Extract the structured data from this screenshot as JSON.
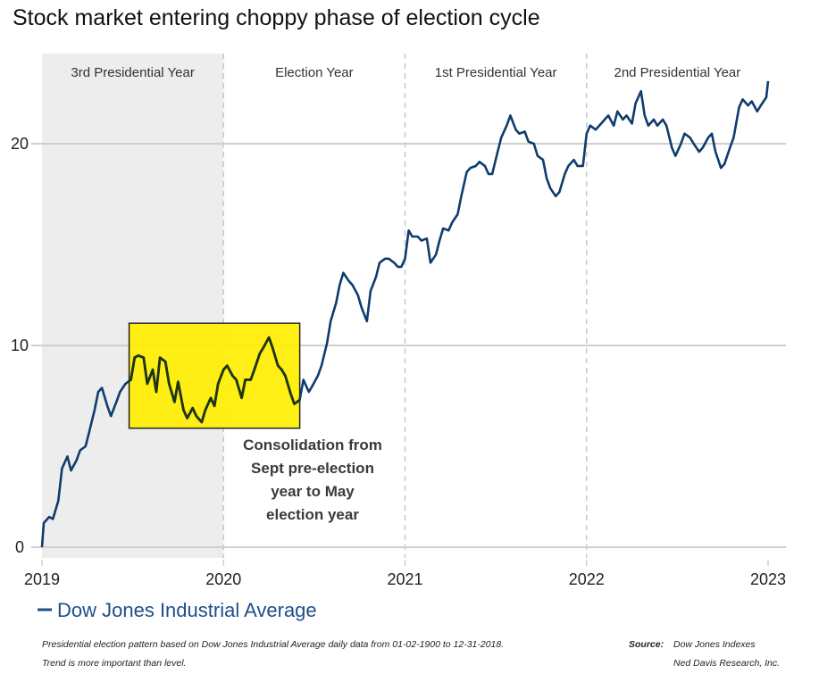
{
  "chart_data": {
    "type": "line",
    "title": "Stock market entering choppy phase of election cycle",
    "xlabel": "",
    "ylabel": "",
    "xlim": [
      2019,
      2023
    ],
    "ylim": [
      0,
      24.5
    ],
    "x_ticks": [
      "2019",
      "2020",
      "2021",
      "2022",
      "2023"
    ],
    "y_ticks": [
      "0",
      "10",
      "20"
    ],
    "grid": "horizontal",
    "legend_position": "bottom-left",
    "line_color": "#0f3c6e",
    "periods": [
      {
        "label": "3rd Presidential Year",
        "start": 2019,
        "end": 2020,
        "shaded": true
      },
      {
        "label": "Election Year",
        "start": 2020,
        "end": 2021,
        "shaded": false
      },
      {
        "label": "1st Presidential Year",
        "start": 2021,
        "end": 2022,
        "shaded": false
      },
      {
        "label": "2nd Presidential Year",
        "start": 2022,
        "end": 2023,
        "shaded": false
      }
    ],
    "highlight": {
      "x": [
        2019.48,
        2020.42
      ],
      "y": [
        5.9,
        11.1
      ],
      "color": "#ffee00",
      "lines": [
        "Consolidation from",
        "Sept pre-election",
        "year to May",
        "election year"
      ]
    },
    "series": [
      {
        "name": "Dow Jones Industrial Average",
        "points": [
          [
            2019.0,
            0
          ],
          [
            2019.01,
            1.2
          ],
          [
            2019.04,
            1.5
          ],
          [
            2019.06,
            1.4
          ],
          [
            2019.09,
            2.3
          ],
          [
            2019.11,
            3.9
          ],
          [
            2019.14,
            4.5
          ],
          [
            2019.16,
            3.8
          ],
          [
            2019.19,
            4.3
          ],
          [
            2019.21,
            4.8
          ],
          [
            2019.24,
            5.0
          ],
          [
            2019.26,
            5.7
          ],
          [
            2019.29,
            6.8
          ],
          [
            2019.31,
            7.7
          ],
          [
            2019.33,
            7.9
          ],
          [
            2019.36,
            7.0
          ],
          [
            2019.38,
            6.5
          ],
          [
            2019.41,
            7.2
          ],
          [
            2019.43,
            7.7
          ],
          [
            2019.46,
            8.1
          ],
          [
            2019.49,
            8.3
          ],
          [
            2019.51,
            9.4
          ],
          [
            2019.53,
            9.5
          ],
          [
            2019.56,
            9.4
          ],
          [
            2019.58,
            8.1
          ],
          [
            2019.61,
            8.8
          ],
          [
            2019.63,
            7.7
          ],
          [
            2019.65,
            9.4
          ],
          [
            2019.68,
            9.2
          ],
          [
            2019.7,
            8.1
          ],
          [
            2019.73,
            7.2
          ],
          [
            2019.75,
            8.2
          ],
          [
            2019.78,
            6.8
          ],
          [
            2019.8,
            6.4
          ],
          [
            2019.83,
            6.9
          ],
          [
            2019.85,
            6.5
          ],
          [
            2019.88,
            6.2
          ],
          [
            2019.9,
            6.8
          ],
          [
            2019.93,
            7.4
          ],
          [
            2019.95,
            7.0
          ],
          [
            2019.97,
            8.1
          ],
          [
            2020.0,
            8.8
          ],
          [
            2020.02,
            9.0
          ],
          [
            2020.05,
            8.5
          ],
          [
            2020.07,
            8.3
          ],
          [
            2020.1,
            7.4
          ],
          [
            2020.12,
            8.3
          ],
          [
            2020.15,
            8.3
          ],
          [
            2020.17,
            8.8
          ],
          [
            2020.2,
            9.6
          ],
          [
            2020.22,
            9.9
          ],
          [
            2020.25,
            10.4
          ],
          [
            2020.27,
            9.9
          ],
          [
            2020.3,
            9.0
          ],
          [
            2020.32,
            8.8
          ],
          [
            2020.34,
            8.5
          ],
          [
            2020.37,
            7.6
          ],
          [
            2020.39,
            7.1
          ],
          [
            2020.42,
            7.3
          ],
          [
            2020.44,
            8.3
          ],
          [
            2020.47,
            7.7
          ],
          [
            2020.49,
            8.0
          ],
          [
            2020.52,
            8.5
          ],
          [
            2020.54,
            9.0
          ],
          [
            2020.57,
            10.1
          ],
          [
            2020.59,
            11.2
          ],
          [
            2020.62,
            12.1
          ],
          [
            2020.64,
            13.0
          ],
          [
            2020.66,
            13.6
          ],
          [
            2020.69,
            13.2
          ],
          [
            2020.71,
            13.0
          ],
          [
            2020.74,
            12.5
          ],
          [
            2020.76,
            11.9
          ],
          [
            2020.79,
            11.2
          ],
          [
            2020.81,
            12.7
          ],
          [
            2020.84,
            13.4
          ],
          [
            2020.86,
            14.1
          ],
          [
            2020.89,
            14.3
          ],
          [
            2020.91,
            14.3
          ],
          [
            2020.94,
            14.1
          ],
          [
            2020.96,
            13.9
          ],
          [
            2020.98,
            13.9
          ],
          [
            2021.0,
            14.3
          ],
          [
            2021.02,
            15.7
          ],
          [
            2021.04,
            15.4
          ],
          [
            2021.07,
            15.4
          ],
          [
            2021.09,
            15.2
          ],
          [
            2021.12,
            15.3
          ],
          [
            2021.14,
            14.1
          ],
          [
            2021.17,
            14.5
          ],
          [
            2021.19,
            15.2
          ],
          [
            2021.21,
            15.8
          ],
          [
            2021.24,
            15.7
          ],
          [
            2021.26,
            16.1
          ],
          [
            2021.29,
            16.5
          ],
          [
            2021.31,
            17.4
          ],
          [
            2021.34,
            18.6
          ],
          [
            2021.36,
            18.8
          ],
          [
            2021.39,
            18.9
          ],
          [
            2021.41,
            19.1
          ],
          [
            2021.44,
            18.9
          ],
          [
            2021.46,
            18.5
          ],
          [
            2021.48,
            18.5
          ],
          [
            2021.51,
            19.6
          ],
          [
            2021.53,
            20.3
          ],
          [
            2021.56,
            20.9
          ],
          [
            2021.58,
            21.4
          ],
          [
            2021.61,
            20.7
          ],
          [
            2021.63,
            20.5
          ],
          [
            2021.66,
            20.6
          ],
          [
            2021.68,
            20.1
          ],
          [
            2021.71,
            20.0
          ],
          [
            2021.73,
            19.4
          ],
          [
            2021.76,
            19.2
          ],
          [
            2021.78,
            18.3
          ],
          [
            2021.8,
            17.8
          ],
          [
            2021.83,
            17.4
          ],
          [
            2021.85,
            17.6
          ],
          [
            2021.88,
            18.5
          ],
          [
            2021.9,
            18.9
          ],
          [
            2021.93,
            19.2
          ],
          [
            2021.95,
            18.9
          ],
          [
            2021.98,
            18.9
          ],
          [
            2022.0,
            20.5
          ],
          [
            2022.02,
            20.9
          ],
          [
            2022.05,
            20.7
          ],
          [
            2022.07,
            20.9
          ],
          [
            2022.1,
            21.2
          ],
          [
            2022.12,
            21.4
          ],
          [
            2022.15,
            20.9
          ],
          [
            2022.17,
            21.6
          ],
          [
            2022.2,
            21.2
          ],
          [
            2022.22,
            21.4
          ],
          [
            2022.25,
            21.0
          ],
          [
            2022.27,
            22.0
          ],
          [
            2022.3,
            22.6
          ],
          [
            2022.32,
            21.4
          ],
          [
            2022.34,
            20.9
          ],
          [
            2022.37,
            21.2
          ],
          [
            2022.39,
            20.9
          ],
          [
            2022.42,
            21.2
          ],
          [
            2022.44,
            20.9
          ],
          [
            2022.47,
            19.8
          ],
          [
            2022.49,
            19.4
          ],
          [
            2022.52,
            20.0
          ],
          [
            2022.54,
            20.5
          ],
          [
            2022.57,
            20.3
          ],
          [
            2022.59,
            20.0
          ],
          [
            2022.62,
            19.6
          ],
          [
            2022.64,
            19.8
          ],
          [
            2022.67,
            20.3
          ],
          [
            2022.69,
            20.5
          ],
          [
            2022.71,
            19.6
          ],
          [
            2022.74,
            18.8
          ],
          [
            2022.76,
            19.0
          ],
          [
            2022.79,
            19.8
          ],
          [
            2022.81,
            20.3
          ],
          [
            2022.84,
            21.8
          ],
          [
            2022.86,
            22.2
          ],
          [
            2022.89,
            21.9
          ],
          [
            2022.91,
            22.1
          ],
          [
            2022.94,
            21.6
          ],
          [
            2022.96,
            21.9
          ],
          [
            2022.99,
            22.3
          ],
          [
            2023.0,
            23.1
          ]
        ]
      }
    ]
  },
  "footer": {
    "note_line1": "Presidential election pattern based on Dow Jones Industrial Average daily data from 01-02-1900 to 12-31-2018.",
    "note_line2": "Trend is more important than level.",
    "source_label": "Source:",
    "source_line1": "Dow Jones Indexes",
    "source_line2": "Ned Davis Research, Inc."
  }
}
